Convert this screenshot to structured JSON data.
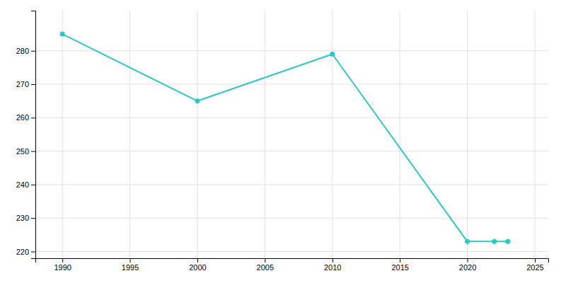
{
  "chart_data": {
    "type": "line",
    "x": [
      1990,
      2000,
      2010,
      2020,
      2022,
      2023
    ],
    "values": [
      285,
      265,
      279,
      223,
      223,
      223
    ],
    "color": "#2dc7c4",
    "marker": "circle",
    "xlim": [
      1988,
      2026
    ],
    "ylim": [
      218,
      292
    ],
    "xticks": [
      1990,
      1995,
      2000,
      2005,
      2010,
      2015,
      2020,
      2025
    ],
    "yticks": [
      220,
      230,
      240,
      250,
      260,
      270,
      280
    ],
    "grid": true
  }
}
